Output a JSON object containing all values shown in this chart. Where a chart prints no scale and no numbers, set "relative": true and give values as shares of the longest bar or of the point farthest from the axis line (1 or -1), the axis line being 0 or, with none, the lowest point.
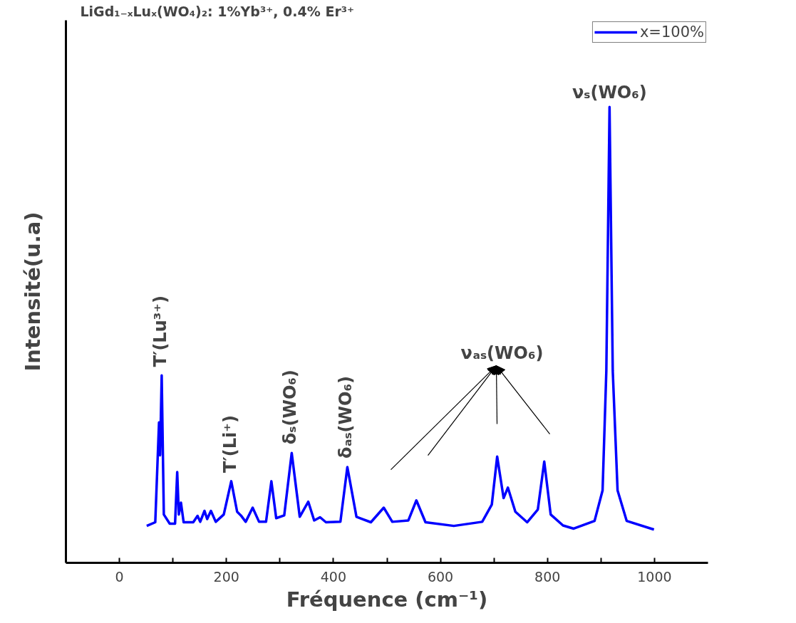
{
  "chart_data": {
    "type": "line",
    "title": "LiGd₁₋ₓLuₓ(WO₄)₂: 1%Yb³⁺, 0.4% Er³⁺",
    "xlabel": "Fréquence (cm⁻¹)",
    "ylabel": "Intensité(u.a)",
    "relative": true,
    "legend": "top right",
    "grid": false,
    "marker": "none",
    "line_style": "solid",
    "xlim": [
      -100,
      1100
    ],
    "xticks": [
      0,
      {
        "value": 100,
        "label": null
      },
      200,
      {
        "value": 300,
        "label": null
      },
      400,
      {
        "value": 500,
        "label": null
      },
      600,
      {
        "value": 700,
        "label": null
      },
      800,
      {
        "value": 900,
        "label": null
      },
      1000
    ],
    "series": [
      {
        "name": "x=100%",
        "color": "#0000ff",
        "x": [
          51,
          67,
          74,
          76,
          79,
          83,
          94,
          104,
          108,
          111,
          115,
          120,
          138,
          146,
          151,
          159,
          164,
          171,
          180,
          195,
          209,
          220,
          227,
          236,
          249,
          261,
          274,
          284,
          293,
          308,
          322,
          337,
          353,
          364,
          375,
          386,
          413,
          426,
          443,
          470,
          494,
          510,
          540,
          555,
          572,
          625,
          678,
          696,
          706,
          718,
          726,
          740,
          762,
          782,
          794,
          806,
          829,
          849,
          888,
          903,
          910,
          916,
          922,
          931,
          948,
          999
        ],
        "values": [
          0.081,
          0.089,
          0.308,
          0.236,
          0.411,
          0.106,
          0.086,
          0.086,
          0.199,
          0.106,
          0.132,
          0.089,
          0.089,
          0.103,
          0.09,
          0.114,
          0.096,
          0.114,
          0.09,
          0.106,
          0.179,
          0.112,
          0.104,
          0.09,
          0.121,
          0.09,
          0.09,
          0.179,
          0.098,
          0.104,
          0.241,
          0.101,
          0.134,
          0.093,
          0.1,
          0.089,
          0.09,
          0.21,
          0.101,
          0.089,
          0.121,
          0.09,
          0.093,
          0.137,
          0.089,
          0.081,
          0.09,
          0.128,
          0.233,
          0.142,
          0.165,
          0.112,
          0.089,
          0.117,
          0.222,
          0.106,
          0.082,
          0.075,
          0.092,
          0.159,
          0.421,
          1.0,
          0.421,
          0.159,
          0.092,
          0.073
        ]
      }
    ],
    "annotations": [
      {
        "text": "T′(Lu³⁺)",
        "x": 79,
        "y": 0.411
      },
      {
        "text": "T′(Li⁺)",
        "x": 209,
        "y": 0.179
      },
      {
        "text": "δₛ(WO₆)",
        "x": 322,
        "y": 0.241
      },
      {
        "text": "δₐₛ(WO₆)",
        "x": 426,
        "y": 0.21
      },
      "νₐₛ(WO₆)",
      {
        "text": "νₛ(WO₆)",
        "x": 916,
        "y": 1.0
      }
    ]
  }
}
